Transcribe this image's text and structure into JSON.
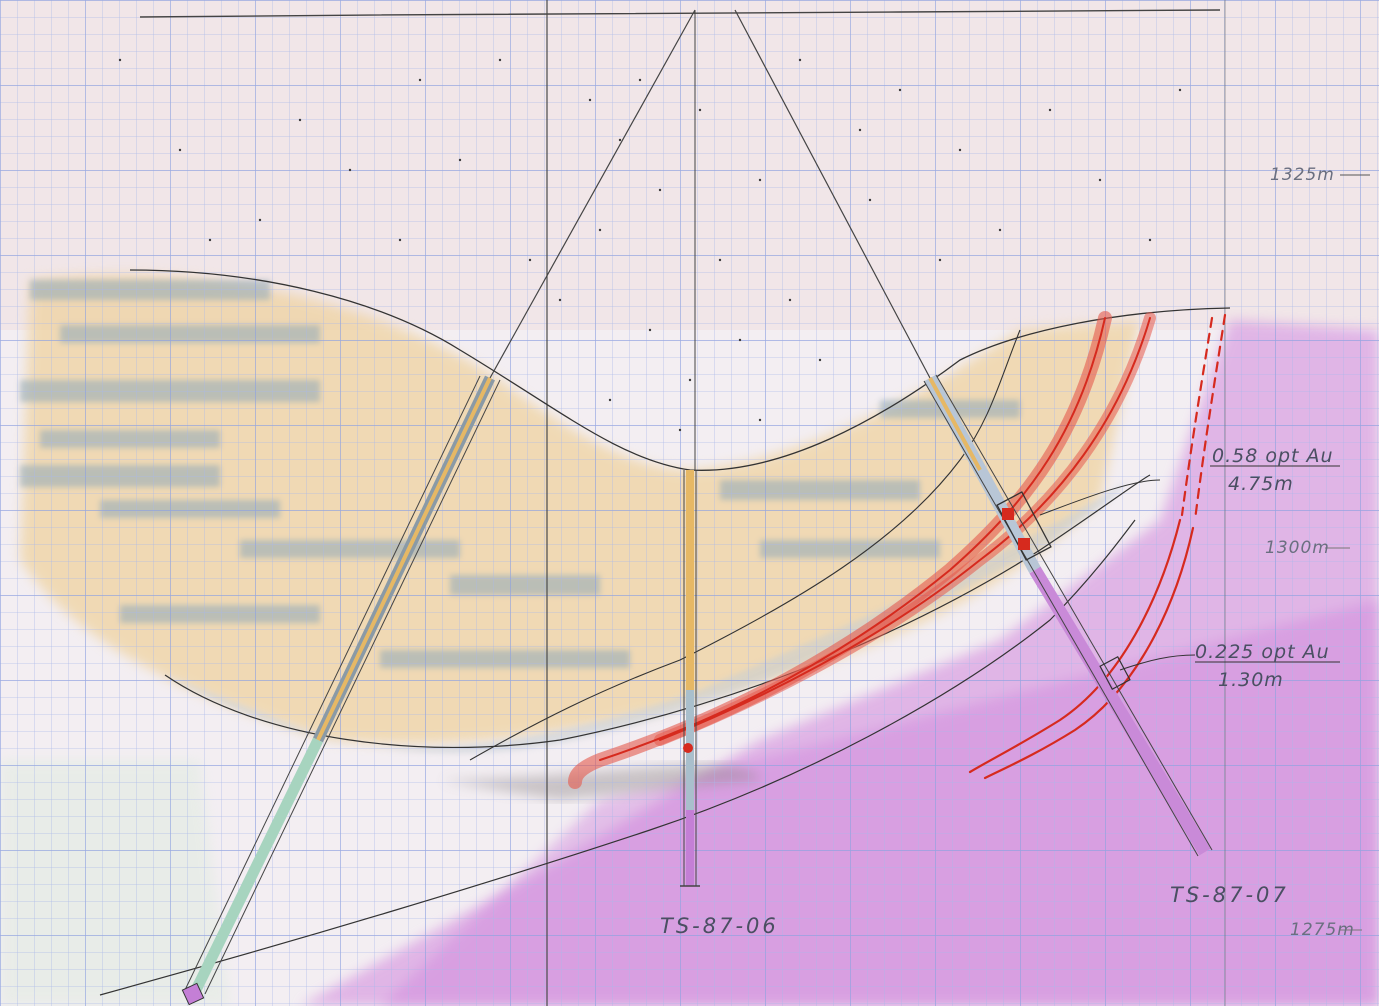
{
  "section": {
    "elevation_labels": [
      "1325m",
      "1300m",
      "1275m"
    ],
    "drill_holes": [
      "TS-87-06",
      "TS-87-07"
    ],
    "intercepts": [
      {
        "grade": "0.58 opt Au",
        "width": "4.75m"
      },
      {
        "grade": "0.225 opt Au",
        "width": "1.30m"
      }
    ]
  },
  "colors": {
    "grid": "#9fb0e6",
    "paper": "#f3eef2",
    "overburden": "#efe4e6",
    "orange_zone": "#efc98c",
    "blue_zone": "#9fb2bf",
    "purple_zone": "#cf86dc",
    "vein_red": "#e23b2e",
    "pencil": "#3c3c3c"
  },
  "icons": [
    "drill-collar-icon",
    "drill-bottom-icon"
  ]
}
